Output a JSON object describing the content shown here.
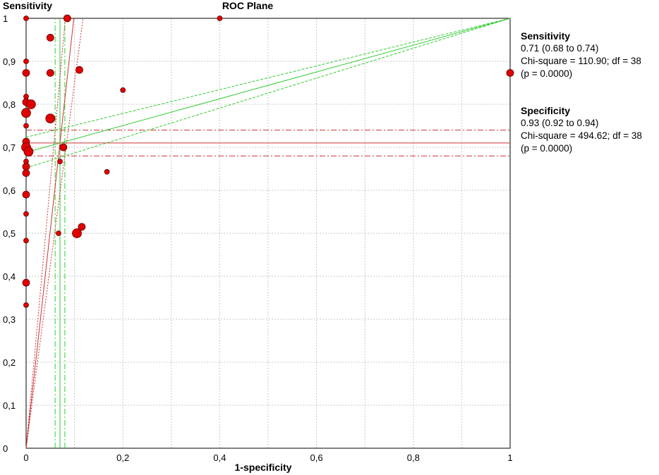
{
  "chart_data": {
    "type": "scatter",
    "title": "ROC Plane",
    "xlabel": "1-specificity",
    "ylabel": "Sensitivity",
    "xlim": [
      0,
      1
    ],
    "ylim": [
      0,
      1
    ],
    "x_ticks": [
      "0",
      "0,2",
      "0,4",
      "0,6",
      "0,8",
      "1"
    ],
    "y_ticks": [
      "0",
      "0,1",
      "0,2",
      "0,3",
      "0,4",
      "0,5",
      "0,6",
      "0,7",
      "0,8",
      "0,9",
      "1"
    ],
    "grid": true,
    "point_color": "#e00000",
    "sensitivity_line_color": "#cc3333",
    "specificity_line_color": "#33cc33",
    "points": [
      {
        "x": 0.0,
        "y": 1.0,
        "size": 1
      },
      {
        "x": 0.085,
        "y": 1.0,
        "size": 2
      },
      {
        "x": 0.4,
        "y": 1.0,
        "size": 1
      },
      {
        "x": 0.05,
        "y": 0.955,
        "size": 2
      },
      {
        "x": 0.0,
        "y": 0.9,
        "size": 1
      },
      {
        "x": 0.0,
        "y": 0.873,
        "size": 2
      },
      {
        "x": 0.05,
        "y": 0.873,
        "size": 2
      },
      {
        "x": 0.11,
        "y": 0.88,
        "size": 2
      },
      {
        "x": 1.0,
        "y": 0.873,
        "size": 2
      },
      {
        "x": 0.2,
        "y": 0.833,
        "size": 1
      },
      {
        "x": 0.0,
        "y": 0.818,
        "size": 1
      },
      {
        "x": 0.0,
        "y": 0.805,
        "size": 2
      },
      {
        "x": 0.01,
        "y": 0.8,
        "size": 3
      },
      {
        "x": 0.0,
        "y": 0.78,
        "size": 3
      },
      {
        "x": 0.05,
        "y": 0.767,
        "size": 3
      },
      {
        "x": 0.0,
        "y": 0.75,
        "size": 1
      },
      {
        "x": 0.0,
        "y": 0.713,
        "size": 2
      },
      {
        "x": 0.0,
        "y": 0.7,
        "size": 3
      },
      {
        "x": 0.005,
        "y": 0.69,
        "size": 3
      },
      {
        "x": 0.077,
        "y": 0.7,
        "size": 2
      },
      {
        "x": 0.07,
        "y": 0.667,
        "size": 1
      },
      {
        "x": 0.0,
        "y": 0.667,
        "size": 1
      },
      {
        "x": 0.0,
        "y": 0.655,
        "size": 2
      },
      {
        "x": 0.0,
        "y": 0.64,
        "size": 2
      },
      {
        "x": 0.167,
        "y": 0.643,
        "size": 1
      },
      {
        "x": 0.0,
        "y": 0.59,
        "size": 2
      },
      {
        "x": 0.0,
        "y": 0.545,
        "size": 1
      },
      {
        "x": 0.115,
        "y": 0.515,
        "size": 2
      },
      {
        "x": 0.105,
        "y": 0.5,
        "size": 3
      },
      {
        "x": 0.067,
        "y": 0.5,
        "size": 1
      },
      {
        "x": 0.0,
        "y": 0.483,
        "size": 1
      },
      {
        "x": 0.0,
        "y": 0.385,
        "size": 2
      },
      {
        "x": 0.0,
        "y": 0.333,
        "size": 1
      }
    ],
    "pooled_sensitivity": {
      "estimate": 0.71,
      "ci": [
        0.68,
        0.74
      ]
    },
    "pooled_specificity": {
      "estimate": 0.93,
      "ci": [
        0.92,
        0.94
      ]
    }
  },
  "sensitivity_panel": {
    "title": "Sensitivity",
    "estimate_line": "0.71 (0.68 to 0.74)",
    "chi_line": "Chi-square = 110.90; df = 38",
    "p_line": "(p = 0.0000)"
  },
  "specificity_panel": {
    "title": "Specificity",
    "estimate_line": "0.93 (0.92 to 0.94)",
    "chi_line": "Chi-square = 494.62; df = 38",
    "p_line": "(p = 0.0000)"
  }
}
